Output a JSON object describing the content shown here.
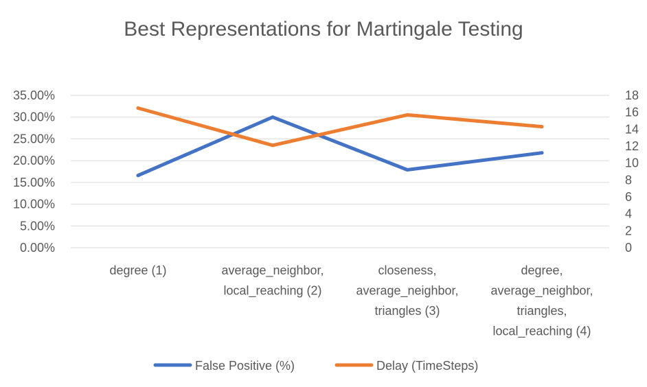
{
  "chart_data": {
    "type": "line",
    "title": "Best Representations for Martingale Testing",
    "categories": [
      [
        "degree (1)"
      ],
      [
        "average_neighbor,",
        "local_reaching (2)"
      ],
      [
        "closeness,",
        "average_neighbor,",
        "triangles (3)"
      ],
      [
        "degree,",
        "average_neighbor,",
        "triangles,",
        "local_reaching (4)"
      ]
    ],
    "y_left": {
      "ticks": [
        "0.00%",
        "5.00%",
        "10.00%",
        "15.00%",
        "20.00%",
        "25.00%",
        "30.00%",
        "35.00%"
      ],
      "range": [
        0,
        35
      ]
    },
    "y_right": {
      "ticks": [
        "0",
        "2",
        "4",
        "6",
        "8",
        "10",
        "12",
        "14",
        "16",
        "18"
      ],
      "range": [
        0,
        18
      ]
    },
    "series": [
      {
        "name": "False Positive (%)",
        "axis": "left",
        "color": "#4472c4",
        "values": [
          16.6,
          30.0,
          17.9,
          21.8
        ]
      },
      {
        "name": "Delay (TimeSteps)",
        "axis": "right",
        "color": "#ed7d31",
        "values": [
          16.5,
          12.1,
          15.7,
          14.3
        ]
      }
    ],
    "grid": true,
    "legend": "bottom"
  }
}
